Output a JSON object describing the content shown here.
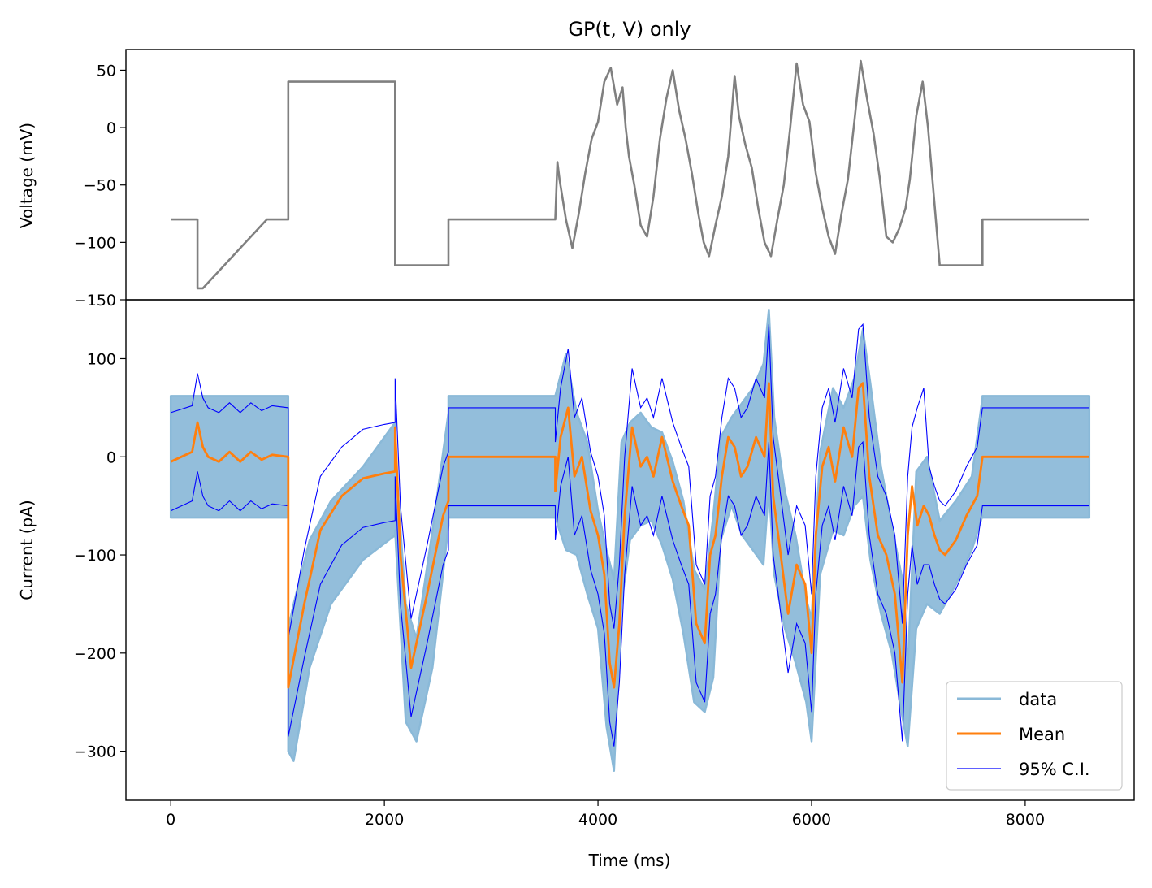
{
  "title": "GP(t, V) only",
  "chart_data": [
    {
      "type": "line",
      "panel": "top",
      "ylabel": "Voltage (mV)",
      "xlim": [
        -420,
        9020
      ],
      "ylim": [
        -150,
        68
      ],
      "yticks": [
        50,
        0,
        -50,
        -100,
        -150
      ],
      "series": [
        {
          "name": "",
          "color": "#808080",
          "x": [
            0,
            250,
            250,
            300,
            900,
            900,
            1100,
            1100,
            2100,
            2100,
            2600,
            2600,
            3600,
            3620,
            3640,
            3700,
            3760,
            3820,
            3880,
            3940,
            4000,
            4060,
            4120,
            4180,
            4230,
            4260,
            4290,
            4340,
            4400,
            4460,
            4520,
            4580,
            4640,
            4700,
            4760,
            4820,
            4880,
            4940,
            4990,
            5040,
            5100,
            5160,
            5220,
            5280,
            5320,
            5380,
            5440,
            5500,
            5560,
            5620,
            5680,
            5740,
            5800,
            5860,
            5920,
            5980,
            6040,
            6100,
            6160,
            6220,
            6280,
            6340,
            6400,
            6460,
            6520,
            6580,
            6640,
            6700,
            6760,
            6820,
            6880,
            6920,
            6980,
            7040,
            7090,
            7200,
            7200,
            7600,
            7600,
            8600
          ],
          "y": [
            -80,
            -80,
            -140,
            -140,
            -80,
            -80,
            -80,
            40,
            40,
            -120,
            -120,
            -80,
            -80,
            -30,
            -45,
            -80,
            -105,
            -75,
            -40,
            -10,
            5,
            40,
            52,
            20,
            35,
            0,
            -25,
            -50,
            -85,
            -95,
            -60,
            -10,
            25,
            50,
            15,
            -10,
            -40,
            -75,
            -100,
            -112,
            -85,
            -60,
            -25,
            45,
            10,
            -15,
            -35,
            -70,
            -100,
            -112,
            -80,
            -50,
            0,
            56,
            20,
            5,
            -40,
            -70,
            -95,
            -110,
            -75,
            -45,
            5,
            58,
            25,
            -5,
            -45,
            -95,
            -100,
            -88,
            -70,
            -45,
            10,
            40,
            0,
            -120,
            -120,
            -120,
            -80,
            -80
          ]
        }
      ]
    },
    {
      "type": "line",
      "panel": "bottom",
      "xlabel": "Time (ms)",
      "ylabel": "Current (pA)",
      "xlim": [
        -420,
        9020
      ],
      "ylim": [
        -350,
        160
      ],
      "xticks": [
        0,
        2000,
        4000,
        6000,
        8000
      ],
      "yticks": [
        100,
        0,
        -100,
        -200,
        -300
      ],
      "legend": "bottom-right",
      "series": [
        {
          "name": "data",
          "color": "#8ab9d8",
          "x": [
            0,
            1100,
            1100,
            1150,
            1300,
            1500,
            1800,
            2100,
            2100,
            2200,
            2300,
            2450,
            2600,
            2600,
            3600,
            3700,
            3800,
            3900,
            4000,
            4080,
            4150,
            4220,
            4300,
            4400,
            4500,
            4600,
            4700,
            4800,
            4900,
            5000,
            5080,
            5150,
            5250,
            5350,
            5450,
            5550,
            5600,
            5650,
            5750,
            5850,
            5950,
            6000,
            6080,
            6200,
            6300,
            6400,
            6480,
            6550,
            6650,
            6750,
            6850,
            6900,
            6980,
            7080,
            7200,
            7350,
            7500,
            7600,
            7600,
            8600
          ],
          "y_high": [
            62,
            62,
            -175,
            -150,
            -85,
            -45,
            -10,
            35,
            5,
            -150,
            -185,
            -75,
            45,
            62,
            62,
            105,
            45,
            15,
            -55,
            -95,
            -125,
            15,
            35,
            45,
            30,
            25,
            -5,
            -45,
            -115,
            -135,
            -60,
            20,
            40,
            55,
            70,
            95,
            150,
            40,
            -35,
            -80,
            -145,
            -165,
            5,
            70,
            50,
            80,
            130,
            75,
            -10,
            -70,
            -125,
            -215,
            -15,
            0,
            -65,
            -45,
            -20,
            60,
            62,
            62
          ],
          "y_low": [
            -62,
            -62,
            -300,
            -310,
            -215,
            -150,
            -105,
            -80,
            -75,
            -270,
            -290,
            -215,
            -70,
            -62,
            -62,
            -95,
            -100,
            -140,
            -175,
            -275,
            -320,
            -150,
            -85,
            -70,
            -65,
            -90,
            -125,
            -180,
            -250,
            -260,
            -225,
            -85,
            -50,
            -80,
            -95,
            -110,
            -30,
            -120,
            -175,
            -210,
            -250,
            -290,
            -120,
            -75,
            -80,
            -50,
            -40,
            -105,
            -160,
            -200,
            -265,
            -295,
            -175,
            -150,
            -160,
            -130,
            -95,
            -60,
            -62,
            -62
          ]
        },
        {
          "name": "Mean",
          "color": "#ff7f0e",
          "x": [
            0,
            200,
            250,
            300,
            350,
            450,
            550,
            650,
            750,
            850,
            950,
            1100,
            1100,
            1250,
            1400,
            1600,
            1800,
            2000,
            2100,
            2100,
            2150,
            2250,
            2400,
            2550,
            2600,
            2600,
            2800,
            3000,
            3200,
            3400,
            3600,
            3600,
            3650,
            3720,
            3780,
            3850,
            3930,
            4000,
            4060,
            4110,
            4150,
            4200,
            4250,
            4320,
            4400,
            4460,
            4520,
            4600,
            4700,
            4780,
            4850,
            4920,
            5000,
            5050,
            5100,
            5160,
            5220,
            5280,
            5340,
            5400,
            5480,
            5560,
            5600,
            5640,
            5700,
            5780,
            5860,
            5940,
            6000,
            6040,
            6100,
            6160,
            6220,
            6300,
            6380,
            6440,
            6480,
            6540,
            6620,
            6700,
            6780,
            6850,
            6900,
            6940,
            6990,
            7050,
            7100,
            7150,
            7200,
            7250,
            7350,
            7450,
            7550,
            7600,
            7600,
            7800,
            8000,
            8200,
            8400,
            8600
          ],
          "y": [
            -5,
            5,
            35,
            10,
            0,
            -5,
            5,
            -5,
            5,
            -3,
            2,
            0,
            -235,
            -150,
            -75,
            -40,
            -22,
            -17,
            -15,
            30,
            -100,
            -215,
            -140,
            -60,
            -45,
            0,
            0,
            0,
            0,
            0,
            0,
            -35,
            20,
            50,
            -20,
            0,
            -55,
            -80,
            -120,
            -210,
            -235,
            -170,
            -60,
            30,
            -10,
            0,
            -20,
            20,
            -25,
            -50,
            -70,
            -170,
            -190,
            -100,
            -80,
            -20,
            20,
            10,
            -20,
            -10,
            20,
            0,
            75,
            -40,
            -90,
            -160,
            -110,
            -130,
            -200,
            -80,
            -10,
            10,
            -25,
            30,
            0,
            70,
            75,
            -20,
            -80,
            -100,
            -140,
            -230,
            -80,
            -30,
            -70,
            -50,
            -60,
            -80,
            -95,
            -100,
            -85,
            -60,
            -40,
            0,
            0,
            0,
            0,
            0,
            0,
            0
          ]
        },
        {
          "name": "95% C.I.",
          "color": "#0000ff",
          "x": [
            0,
            200,
            250,
            300,
            350,
            450,
            550,
            650,
            750,
            850,
            950,
            1100,
            1100,
            1250,
            1400,
            1600,
            1800,
            2000,
            2100,
            2100,
            2150,
            2250,
            2400,
            2550,
            2600,
            2600,
            2800,
            3000,
            3200,
            3400,
            3600,
            3600,
            3650,
            3720,
            3780,
            3850,
            3930,
            4000,
            4060,
            4110,
            4150,
            4200,
            4250,
            4320,
            4400,
            4460,
            4520,
            4600,
            4700,
            4780,
            4850,
            4920,
            5000,
            5050,
            5100,
            5160,
            5220,
            5280,
            5340,
            5400,
            5480,
            5560,
            5600,
            5640,
            5700,
            5780,
            5860,
            5940,
            6000,
            6040,
            6100,
            6160,
            6220,
            6300,
            6380,
            6440,
            6480,
            6540,
            6620,
            6700,
            6780,
            6850,
            6900,
            6940,
            6990,
            7050,
            7100,
            7150,
            7200,
            7250,
            7350,
            7450,
            7550,
            7600,
            7600,
            7800,
            8000,
            8200,
            8400,
            8600
          ],
          "upper": [
            45,
            52,
            85,
            60,
            50,
            45,
            55,
            45,
            55,
            47,
            52,
            50,
            -185,
            -95,
            -20,
            10,
            28,
            33,
            35,
            80,
            -50,
            -165,
            -90,
            -10,
            5,
            50,
            50,
            50,
            50,
            50,
            50,
            15,
            70,
            110,
            40,
            60,
            5,
            -20,
            -60,
            -150,
            -175,
            -110,
            0,
            90,
            50,
            60,
            40,
            80,
            35,
            10,
            -10,
            -110,
            -130,
            -40,
            -20,
            40,
            80,
            70,
            40,
            50,
            80,
            60,
            135,
            20,
            -30,
            -100,
            -50,
            -70,
            -140,
            -20,
            50,
            70,
            35,
            90,
            60,
            130,
            135,
            40,
            -20,
            -40,
            -80,
            -170,
            -20,
            30,
            50,
            70,
            -10,
            -30,
            -45,
            -50,
            -35,
            -10,
            10,
            50,
            50,
            50,
            50,
            50,
            50,
            50
          ],
          "lower": [
            -55,
            -45,
            -15,
            -40,
            -50,
            -55,
            -45,
            -55,
            -45,
            -53,
            -48,
            -50,
            -285,
            -205,
            -130,
            -90,
            -72,
            -67,
            -65,
            -20,
            -150,
            -265,
            -190,
            -110,
            -95,
            -50,
            -50,
            -50,
            -50,
            -50,
            -50,
            -85,
            -30,
            0,
            -80,
            -60,
            -115,
            -140,
            -180,
            -270,
            -295,
            -230,
            -120,
            -30,
            -70,
            -60,
            -80,
            -40,
            -85,
            -110,
            -130,
            -230,
            -250,
            -160,
            -140,
            -80,
            -40,
            -50,
            -80,
            -70,
            -40,
            -60,
            15,
            -100,
            -150,
            -220,
            -170,
            -190,
            -260,
            -140,
            -70,
            -50,
            -85,
            -30,
            -60,
            10,
            15,
            -80,
            -140,
            -160,
            -200,
            -290,
            -140,
            -90,
            -130,
            -110,
            -110,
            -130,
            -145,
            -150,
            -135,
            -110,
            -90,
            -50,
            -50,
            -50,
            -50,
            -50,
            -50,
            -50
          ]
        }
      ]
    }
  ]
}
